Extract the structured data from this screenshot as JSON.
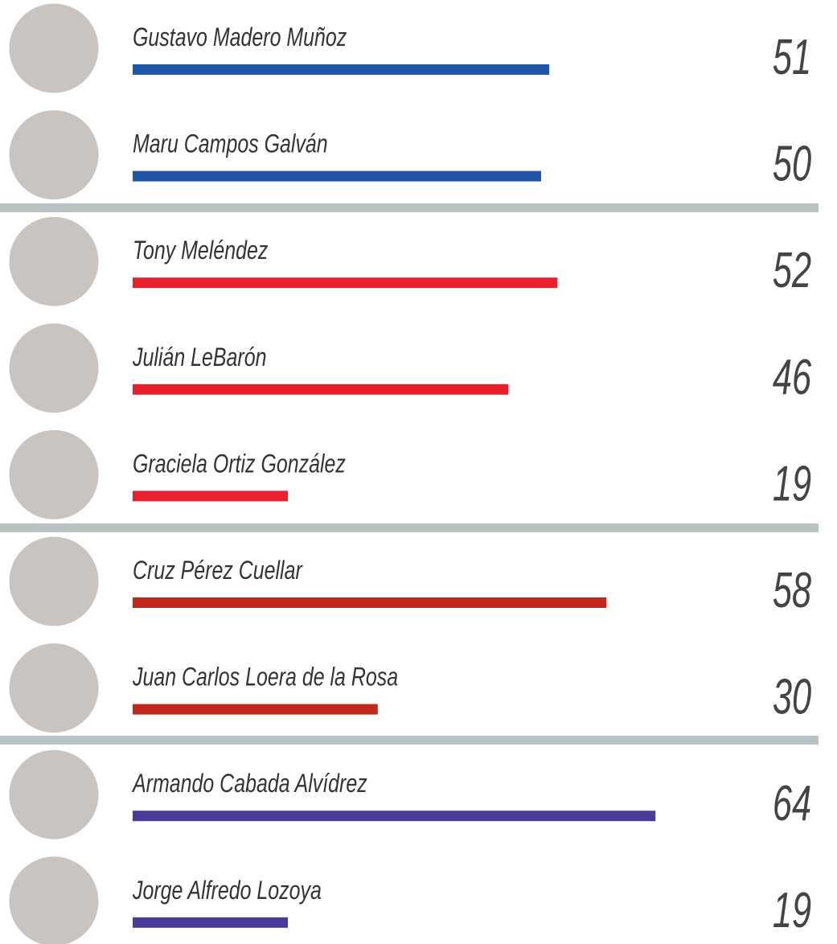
{
  "chart_data": {
    "type": "bar",
    "orientation": "horizontal",
    "categories": [
      "Gustavo Madero Muñoz",
      "Maru Campos Galván",
      "Tony Meléndez",
      "Julián LeBarón",
      "Graciela Ortiz González",
      "Cruz Pérez Cuellar",
      "Juan Carlos Loera de la Rosa",
      "Armando Cabada Alvídrez",
      "Jorge Alfredo Lozoya"
    ],
    "values": [
      51,
      50,
      52,
      46,
      19,
      58,
      30,
      64,
      19
    ],
    "colors": [
      "#1f56a8",
      "#1f56a8",
      "#e8202e",
      "#e8202e",
      "#e8202e",
      "#c0281e",
      "#c0281e",
      "#4a3a9a",
      "#4a3a9a"
    ]
  }
}
